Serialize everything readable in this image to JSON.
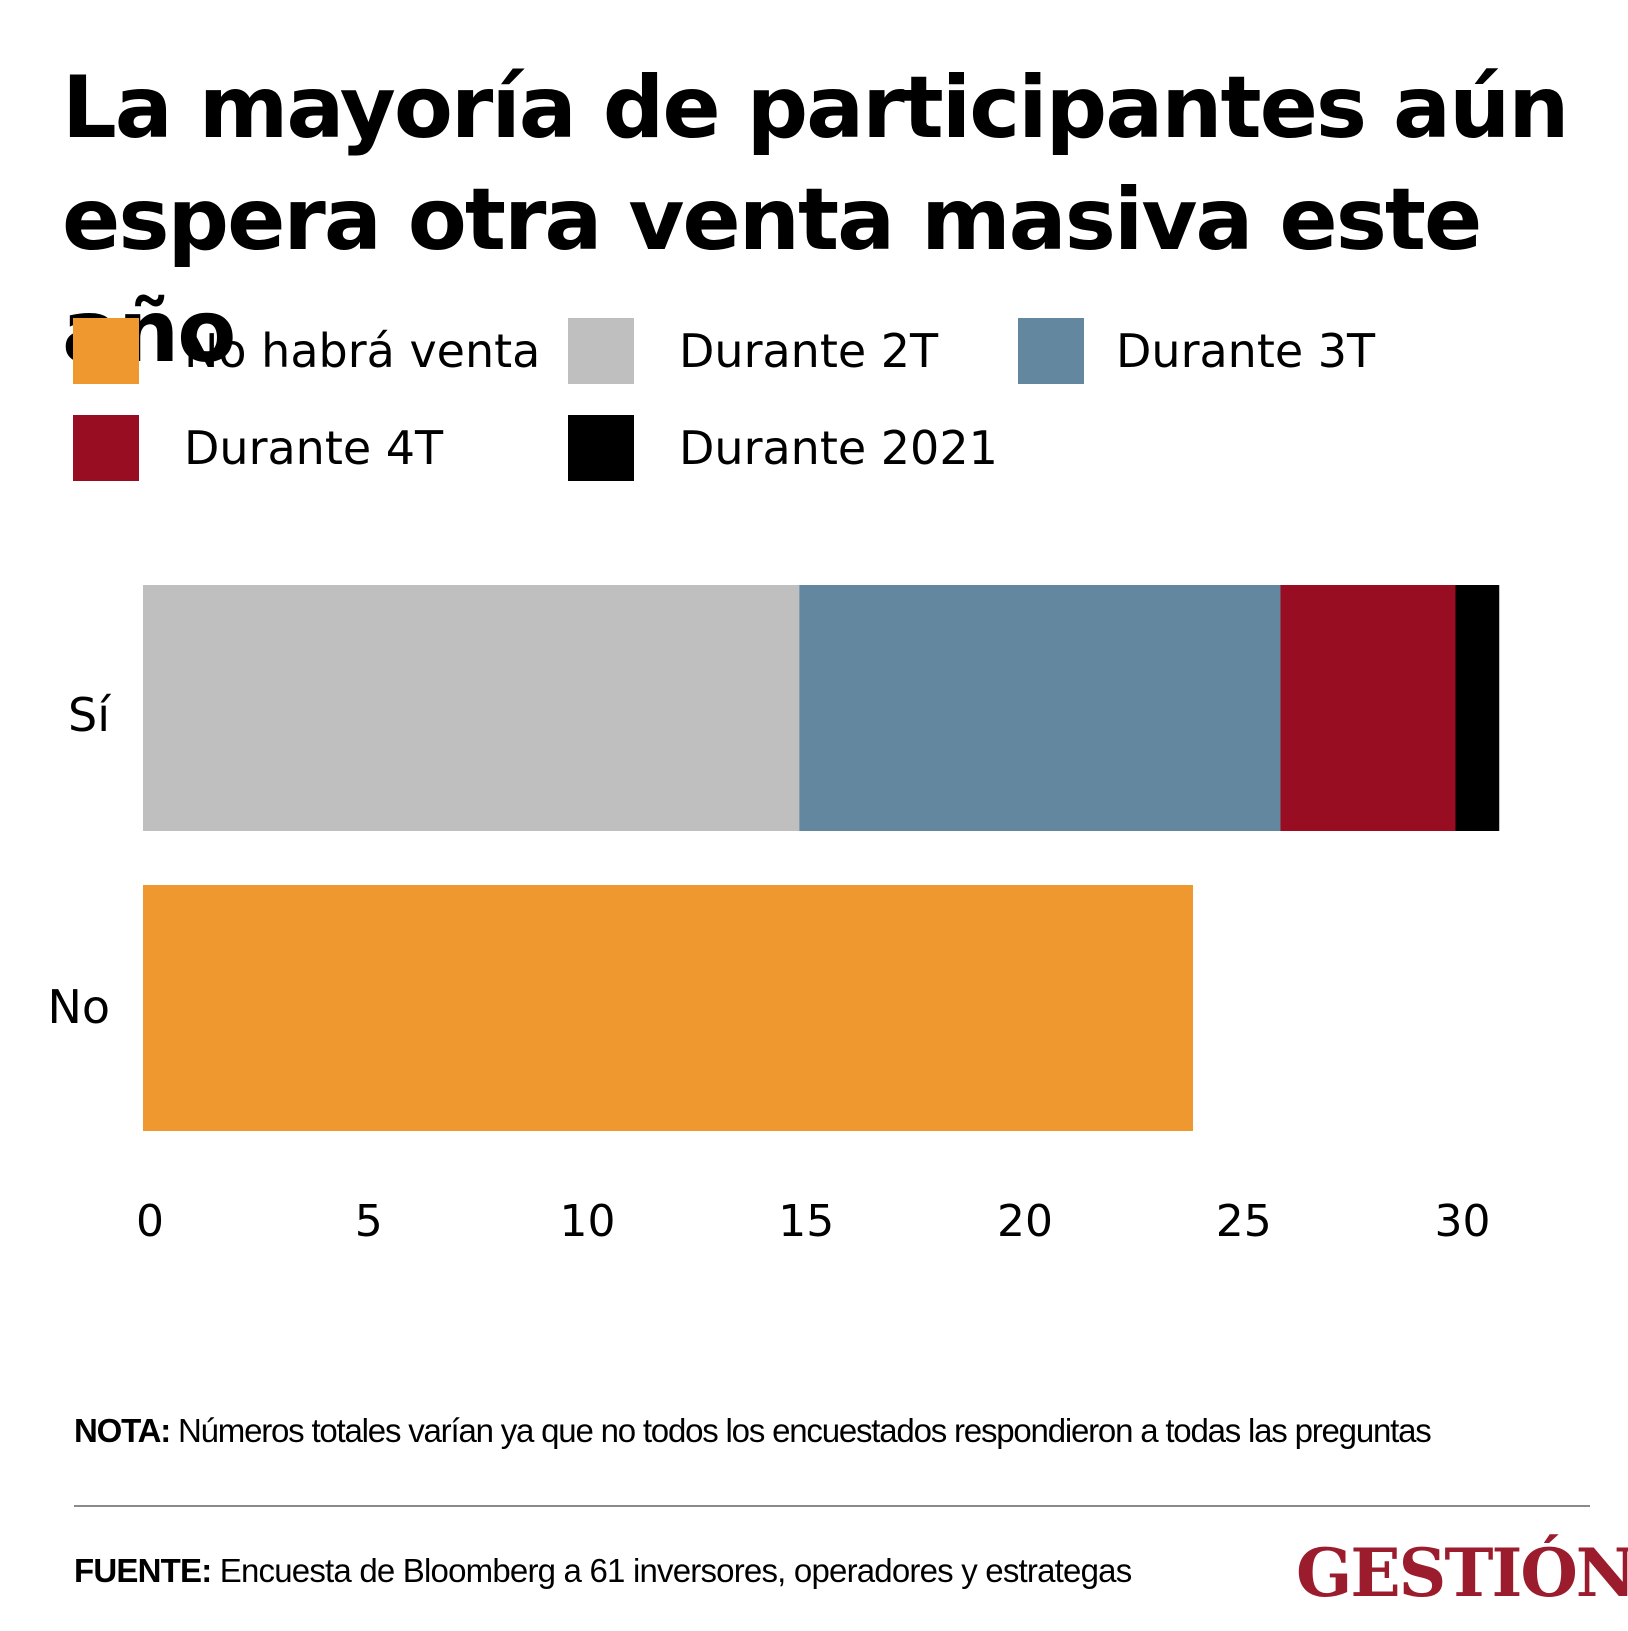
{
  "title": "La mayoría de participantes aún espera otra venta masiva este año",
  "legend": [
    {
      "label": "No habrá venta",
      "color": "#ef9830"
    },
    {
      "label": "Durante 2T",
      "color": "#bfbfbf"
    },
    {
      "label": "Durante 3T",
      "color": "#62879f"
    },
    {
      "label": "Durante 4T",
      "color": "#980d22"
    },
    {
      "label": "Durante 2021",
      "color": "#000000"
    }
  ],
  "chart_data": {
    "type": "bar",
    "orientation": "horizontal",
    "stacked": true,
    "title": "La mayoría de participantes aún espera otra venta masiva este año",
    "categories": [
      "Sí",
      "No"
    ],
    "series": [
      {
        "name": "No habrá venta",
        "color": "#ef9830",
        "values": [
          0,
          24
        ]
      },
      {
        "name": "Durante 2T",
        "color": "#bfbfbf",
        "values": [
          15,
          0
        ]
      },
      {
        "name": "Durante 3T",
        "color": "#62879f",
        "values": [
          11,
          0
        ]
      },
      {
        "name": "Durante 4T",
        "color": "#980d22",
        "values": [
          4,
          0
        ]
      },
      {
        "name": "Durante 2021",
        "color": "#000000",
        "values": [
          1,
          0
        ]
      }
    ],
    "xlabel": "",
    "ylabel": "",
    "xlim": [
      0,
      31
    ],
    "xticks": [
      0,
      5,
      10,
      15,
      20,
      25,
      30
    ],
    "grid": false,
    "legend_position": "top"
  },
  "note": {
    "label": "NOTA:",
    "text": "Números totales varían ya que no todos los encuestados respondieron a todas las preguntas"
  },
  "source": {
    "label": "FUENTE:",
    "text": "Encuesta de Bloomberg a 61 inversores, operadores y estrategas"
  },
  "brand": "GESTIÓN"
}
